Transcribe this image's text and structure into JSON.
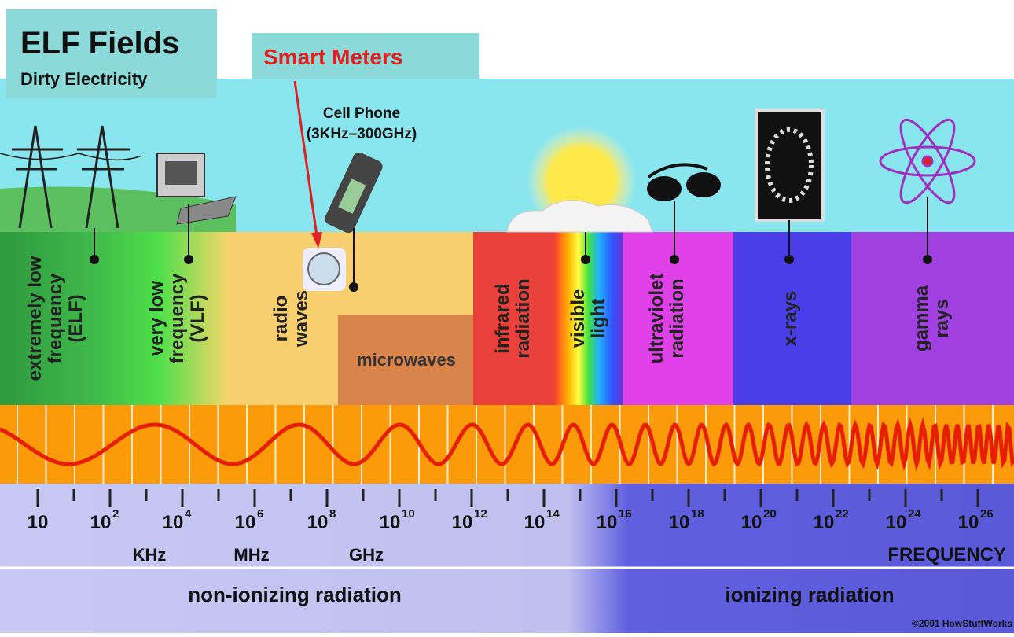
{
  "callouts": {
    "title": "ELF Fields",
    "subtitle": "Dirty Electricity",
    "smart_meters": "Smart Meters",
    "cell_phone": [
      "Cell Phone",
      "(3KHz–300GHz)"
    ]
  },
  "bands": [
    {
      "lines": [
        "extremely low",
        "frequency",
        "(ELF)"
      ]
    },
    {
      "lines": [
        "very low",
        "frequency",
        "(VLF)"
      ]
    },
    {
      "lines": [
        "radio",
        "waves"
      ]
    },
    {
      "lines": [
        "microwaves"
      ]
    },
    {
      "lines": [
        "infrared",
        "radiation"
      ]
    },
    {
      "lines": [
        "visible",
        "light"
      ]
    },
    {
      "lines": [
        "ultraviolet",
        "radiation"
      ]
    },
    {
      "lines": [
        "x-rays"
      ]
    },
    {
      "lines": [
        "gamma",
        "rays"
      ]
    }
  ],
  "frequency_labels": [
    "10",
    {
      "base": "10",
      "exp": "2"
    },
    {
      "base": "10",
      "exp": "4"
    },
    {
      "base": "10",
      "exp": "6"
    },
    {
      "base": "10",
      "exp": "8"
    },
    {
      "base": "10",
      "exp": "10"
    },
    {
      "base": "10",
      "exp": "12"
    },
    {
      "base": "10",
      "exp": "14"
    },
    {
      "base": "10",
      "exp": "16"
    },
    {
      "base": "10",
      "exp": "18"
    },
    {
      "base": "10",
      "exp": "20"
    },
    {
      "base": "10",
      "exp": "22"
    },
    {
      "base": "10",
      "exp": "24"
    },
    {
      "base": "10",
      "exp": "26"
    }
  ],
  "units": [
    "KHz",
    "MHz",
    "GHz"
  ],
  "axis_label": "FREQUENCY",
  "regions": [
    "non-ionizing radiation",
    "ionizing radiation"
  ],
  "credit": "©2001 HowStuffWorks"
}
